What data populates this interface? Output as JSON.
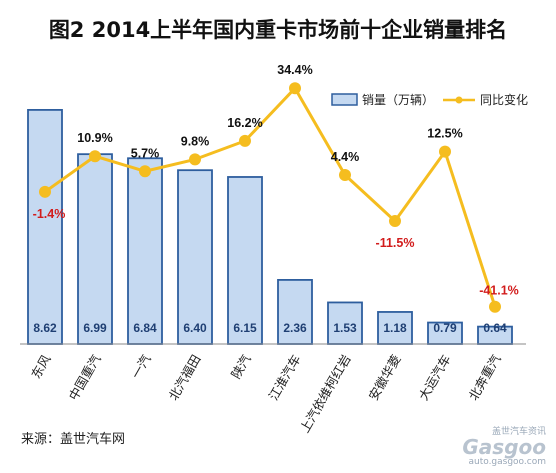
{
  "title": "图2  2014上半年国内重卡市场前十企业销量排名",
  "source": "来源：盖世汽车网",
  "watermark": {
    "top": "盖世汽车资讯",
    "logo": "Gasgoo",
    "url": "auto.gasgoo.com"
  },
  "colors": {
    "bar_fill": "#c5d9f1",
    "bar_stroke": "#2e5e9e",
    "line": "#f5bd1f",
    "marker": "#f5bd1f",
    "pct_positive": "#111111",
    "pct_negative": "#d21c1c",
    "bar_label": "#1f3f73"
  },
  "chart_data": {
    "type": "bar",
    "categories": [
      "东风",
      "中国重汽",
      "一汽",
      "北汽福田",
      "陕汽",
      "江淮汽车",
      "上汽依维柯红岩",
      "安徽华菱",
      "大运汽车",
      "北奔重汽"
    ],
    "series": [
      {
        "name": "销量（万辆）",
        "type": "bar",
        "axis": "left",
        "values": [
          8.62,
          6.99,
          6.84,
          6.4,
          6.15,
          2.36,
          1.53,
          1.18,
          0.79,
          0.64
        ],
        "labels": [
          "8.62",
          "6.99",
          "6.84",
          "6.40",
          "6.15",
          "2.36",
          "1.53",
          "1.18",
          "0.79",
          "0.64"
        ]
      },
      {
        "name": "同比变化",
        "type": "line",
        "axis": "right",
        "values": [
          -1.4,
          10.9,
          5.7,
          9.8,
          16.2,
          34.4,
          4.4,
          -11.5,
          12.5,
          -41.1
        ],
        "labels": [
          "-1.4%",
          "10.9%",
          "5.7%",
          "9.8%",
          "16.2%",
          "34.4%",
          "4.4%",
          "-11.5%",
          "12.5%",
          "-41.1%"
        ]
      }
    ],
    "ylim_left": [
      0,
      9.5
    ],
    "ylim_right": [
      -45,
      40
    ],
    "grid": false,
    "legend": "top-right"
  }
}
